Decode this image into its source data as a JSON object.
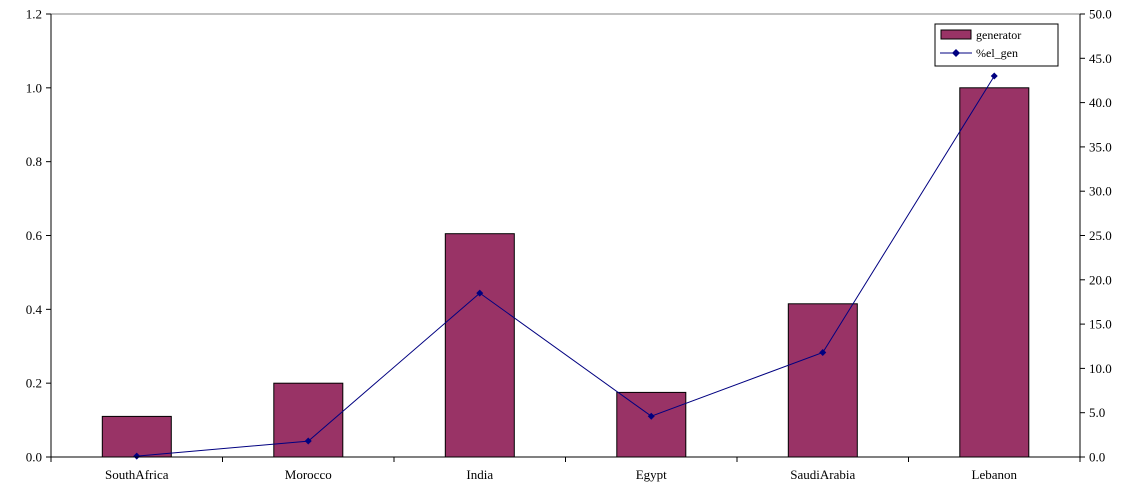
{
  "chart_data": {
    "type": "bar",
    "categories": [
      "SouthAfrica",
      "Morocco",
      "India",
      "Egypt",
      "SaudiArabia",
      "Lebanon"
    ],
    "series": [
      {
        "name": "generator",
        "type": "bar",
        "axis": "left",
        "values": [
          0.11,
          0.2,
          0.605,
          0.175,
          0.415,
          1.0
        ],
        "color": "#993366",
        "border": "#000000"
      },
      {
        "name": "%el_gen",
        "type": "line",
        "axis": "right",
        "values": [
          0.1,
          1.8,
          18.5,
          4.6,
          11.8,
          43.0
        ],
        "color": "#000080",
        "marker": "diamond"
      }
    ],
    "y_left": {
      "ylim": [
        0,
        1.2
      ],
      "ticks": [
        0,
        0.2,
        0.4,
        0.6,
        0.8,
        1.0,
        1.2
      ],
      "tick_labels": [
        "0.0",
        "0.2",
        "0.4",
        "0.6",
        "0.8",
        "1.0",
        "1.2"
      ]
    },
    "y_right": {
      "ylim": [
        0,
        50
      ],
      "ticks": [
        0,
        5,
        10,
        15,
        20,
        25,
        30,
        35,
        40,
        45,
        50
      ],
      "tick_labels": [
        "0.0",
        "5.0",
        "10.0",
        "15.0",
        "20.0",
        "25.0",
        "30.0",
        "35.0",
        "40.0",
        "45.0",
        "50.0"
      ]
    },
    "legend": {
      "position": "top-right",
      "entries": [
        "generator",
        "%el_gen"
      ]
    },
    "grid": false
  }
}
